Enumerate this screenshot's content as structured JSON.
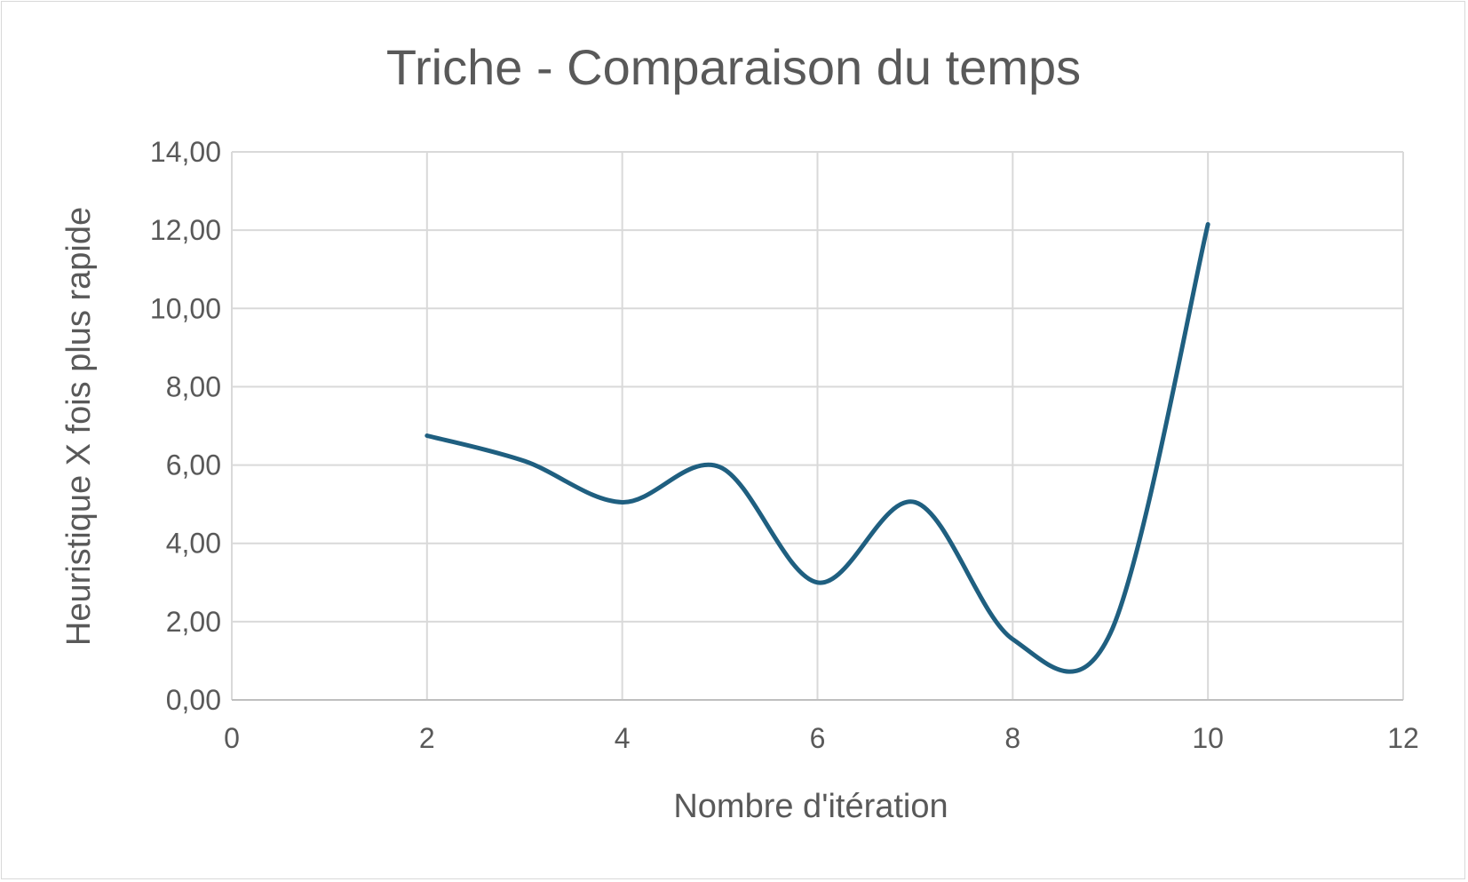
{
  "chart_data": {
    "type": "line",
    "title": "Triche - Comparaison du temps",
    "xlabel": "Nombre d'itération",
    "ylabel": "Heuristique X fois plus rapide",
    "xlim": [
      0,
      12
    ],
    "ylim": [
      0,
      14
    ],
    "x_ticks": [
      0,
      2,
      4,
      6,
      8,
      10,
      12
    ],
    "x_tick_labels": [
      "0",
      "2",
      "4",
      "6",
      "8",
      "10",
      "12"
    ],
    "y_ticks": [
      0,
      2,
      4,
      6,
      8,
      10,
      12,
      14
    ],
    "y_tick_labels": [
      "0,00",
      "2,00",
      "4,00",
      "6,00",
      "8,00",
      "10,00",
      "12,00",
      "14,00"
    ],
    "grid": true,
    "smooth": true,
    "series": [
      {
        "color": "#1f5f80",
        "x": [
          2,
          3,
          4,
          5,
          6,
          7,
          8,
          9,
          10
        ],
        "y": [
          6.75,
          6.1,
          5.05,
          5.95,
          3.0,
          5.05,
          1.55,
          1.7,
          12.15
        ]
      }
    ]
  }
}
